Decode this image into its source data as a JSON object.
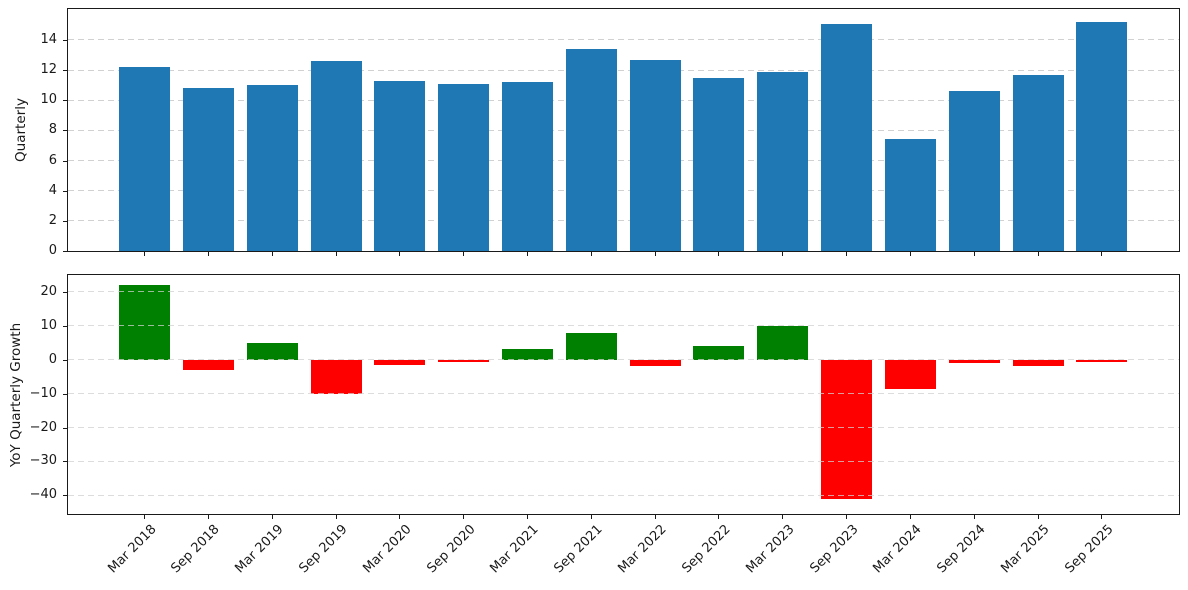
{
  "chart_data": [
    {
      "type": "bar",
      "panel": "top",
      "ylabel": "Quarterly",
      "categories": [
        "Mar 2018",
        "Sep 2018",
        "Mar 2019",
        "Sep 2019",
        "Mar 2020",
        "Sep 2020",
        "Mar 2021",
        "Sep 2021",
        "Mar 2022",
        "Sep 2022",
        "Mar 2023",
        "Sep 2023",
        "Mar 2024",
        "Sep 2024",
        "Mar 2025",
        "Sep 2025"
      ],
      "values": [
        12.2,
        10.8,
        11.0,
        12.6,
        11.3,
        11.1,
        11.2,
        13.4,
        12.7,
        11.5,
        11.85,
        15.05,
        7.4,
        10.6,
        11.7,
        15.2
      ],
      "bar_color": "#1f77b4",
      "ylim": [
        0,
        16.05
      ],
      "yticks": [
        0,
        2,
        4,
        6,
        8,
        10,
        12,
        14
      ],
      "grid": true,
      "grid_above_bars": false,
      "show_xticklabels": false
    },
    {
      "type": "bar",
      "panel": "bottom",
      "ylabel": "YoY Quarterly Growth",
      "categories": [
        "Mar 2018",
        "Sep 2018",
        "Mar 2019",
        "Sep 2019",
        "Mar 2020",
        "Sep 2020",
        "Mar 2021",
        "Sep 2021",
        "Mar 2022",
        "Sep 2022",
        "Mar 2023",
        "Sep 2023",
        "Mar 2024",
        "Sep 2024",
        "Mar 2025",
        "Sep 2025"
      ],
      "values": [
        22,
        -3,
        5,
        -10,
        -1.5,
        -0.6,
        3.1,
        8,
        -1.7,
        4.2,
        10,
        -41,
        -8.5,
        -1.1,
        -1.8,
        -0.8
      ],
      "positive_color": "#008000",
      "negative_color": "#ff0000",
      "ylim": [
        -45.5,
        25.0
      ],
      "yticks": [
        20,
        10,
        0,
        -10,
        -20,
        -30,
        -40
      ],
      "grid": true,
      "grid_above_bars": true,
      "show_xticklabels": true,
      "xtick_rotation": 45
    }
  ]
}
